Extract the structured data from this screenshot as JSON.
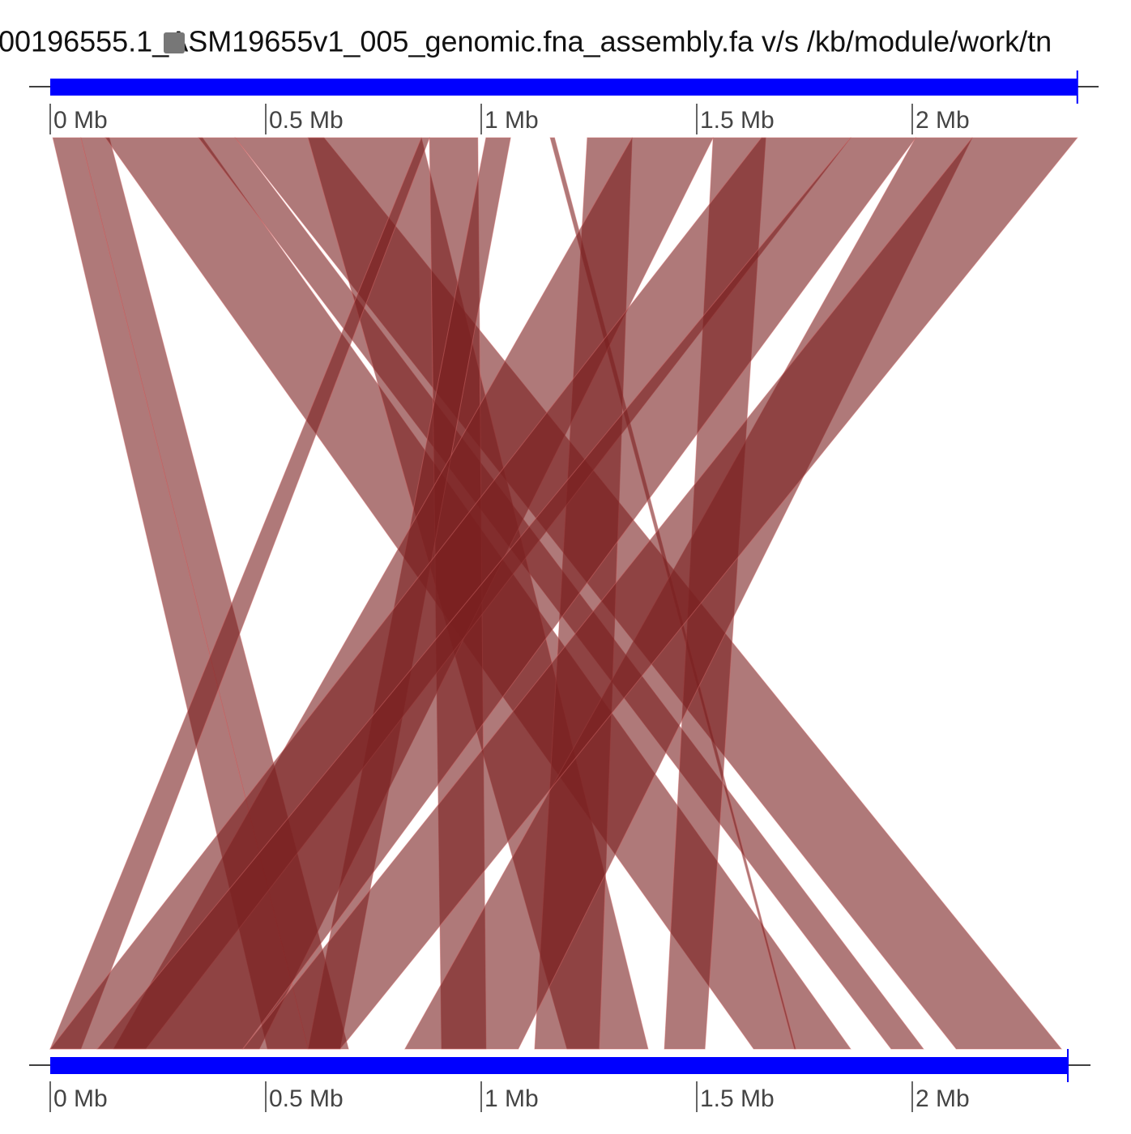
{
  "chart_data": {
    "type": "synteny",
    "title": "00196555.1_ASM19655v1_005_genomic.fna_assembly.fa v/s /kb/module/work/tn",
    "color": "#7a2020",
    "bar_color": "#0000ff",
    "top_axis": {
      "xlim": [
        0,
        2.383
      ],
      "xticks": [
        {
          "value": 0,
          "label": "0 Mb"
        },
        {
          "value": 0.5,
          "label": "0.5 Mb"
        },
        {
          "value": 1,
          "label": "1 Mb"
        },
        {
          "value": 1.5,
          "label": "1.5 Mb"
        },
        {
          "value": 2,
          "label": "2 Mb"
        }
      ]
    },
    "bottom_axis": {
      "xlim": [
        0,
        2.361
      ],
      "xticks": [
        {
          "value": 0,
          "label": "0 Mb"
        },
        {
          "value": 0.5,
          "label": "0.5 Mb"
        },
        {
          "value": 1,
          "label": "1 Mb"
        },
        {
          "value": 1.5,
          "label": "1.5 Mb"
        },
        {
          "value": 2,
          "label": "2 Mb"
        }
      ]
    },
    "alignments": [
      {
        "top": [
          0.006,
          0.071
        ],
        "bottom": [
          0.504,
          0.598
        ]
      },
      {
        "top": [
          0.071,
          0.137
        ],
        "bottom": [
          0.598,
          0.692
        ]
      },
      {
        "top": [
          0.128,
          0.353
        ],
        "bottom": [
          1.632,
          1.857
        ]
      },
      {
        "top": [
          0.344,
          0.429
        ],
        "bottom": [
          1.951,
          2.026
        ]
      },
      {
        "top": [
          0.429,
          0.635
        ],
        "bottom": [
          2.102,
          2.346
        ]
      },
      {
        "top": [
          0.598,
          0.861
        ],
        "bottom": [
          1.199,
          1.387
        ]
      },
      {
        "top": [
          0.861,
          0.88
        ],
        "bottom": [
          0,
          0.071
        ]
      },
      {
        "top": [
          0.88,
          0.992
        ],
        "bottom": [
          0.908,
          1.011
        ]
      },
      {
        "top": [
          1.011,
          1.068
        ],
        "bottom": [
          0.598,
          0.673
        ]
      },
      {
        "top": [
          1.16,
          1.17
        ],
        "bottom": [
          1.726,
          1.73
        ]
      },
      {
        "top": [
          1.246,
          1.35
        ],
        "bottom": [
          1.124,
          1.274
        ]
      },
      {
        "top": [
          1.35,
          1.538
        ],
        "bottom": [
          0.147,
          0.485
        ]
      },
      {
        "top": [
          1.538,
          1.66
        ],
        "bottom": [
          1.425,
          1.519
        ]
      },
      {
        "top": [
          1.65,
          1.857
        ],
        "bottom": [
          0,
          0.222
        ]
      },
      {
        "top": [
          1.857,
          2.008
        ],
        "bottom": [
          0.109,
          0.447
        ]
      },
      {
        "top": [
          2.008,
          2.139
        ],
        "bottom": [
          0.823,
          1.086
        ]
      },
      {
        "top": [
          2.139,
          2.383
        ],
        "bottom": [
          0.447,
          0.673
        ]
      }
    ]
  }
}
